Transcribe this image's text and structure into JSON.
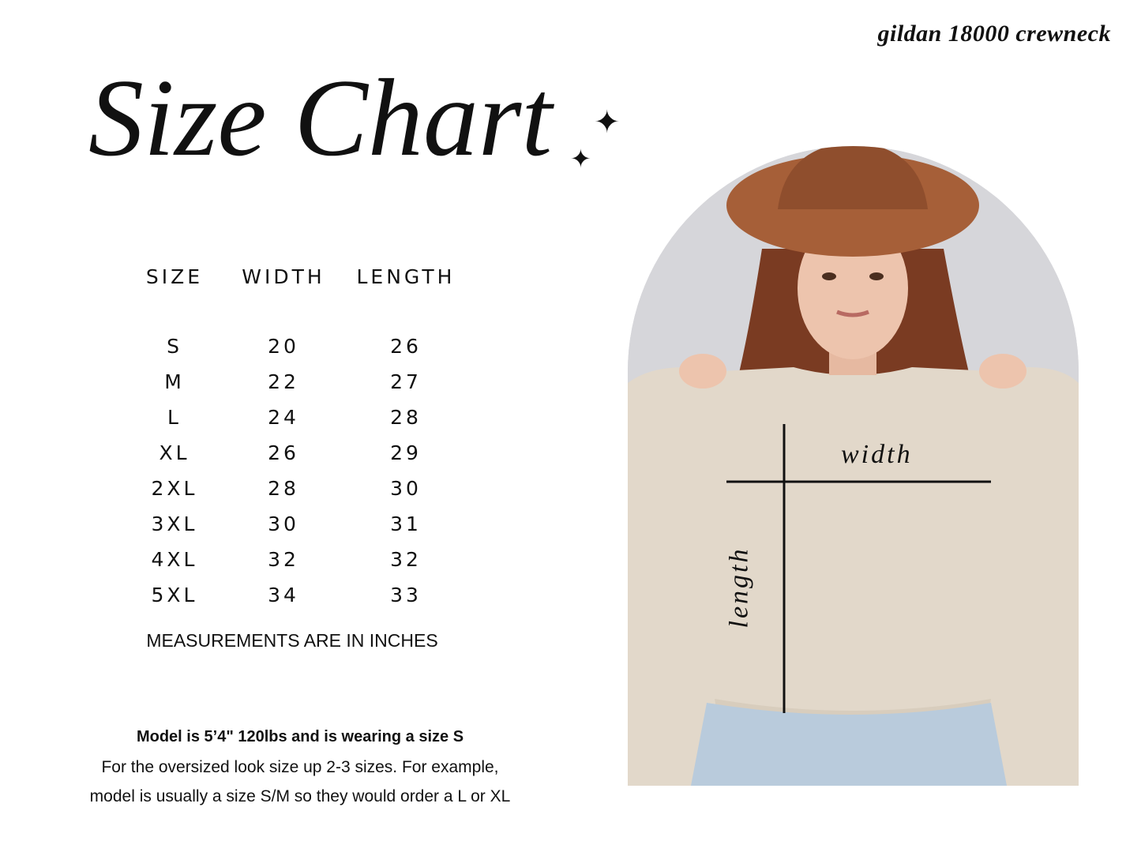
{
  "brand": "gildan 18000 crewneck",
  "title": "Size Chart",
  "table": {
    "headers": [
      "SIZE",
      "WIDTH",
      "LENGTH"
    ],
    "rows": [
      [
        "S",
        "20",
        "26"
      ],
      [
        "M",
        "22",
        "27"
      ],
      [
        "L",
        "24",
        "28"
      ],
      [
        "XL",
        "26",
        "29"
      ],
      [
        "2XL",
        "28",
        "30"
      ],
      [
        "3XL",
        "30",
        "31"
      ],
      [
        "4XL",
        "32",
        "32"
      ],
      [
        "5XL",
        "34",
        "33"
      ]
    ]
  },
  "unit_note": "MEASUREMENTS ARE IN INCHES",
  "model_info": "Model is 5’4\" 120lbs and is wearing a size S",
  "fit_note_1": "For the oversized look size up 2-3 sizes. For example,",
  "fit_note_2": "model is usually a size S/M so they would order a L or XL",
  "photo_labels": {
    "width": "width",
    "length": "length"
  },
  "colors": {
    "background": "#ffffff",
    "text": "#111111",
    "sweatshirt": "#e2d8ca",
    "hat": "#a65f38",
    "photo_bg": "#d6d6da"
  }
}
